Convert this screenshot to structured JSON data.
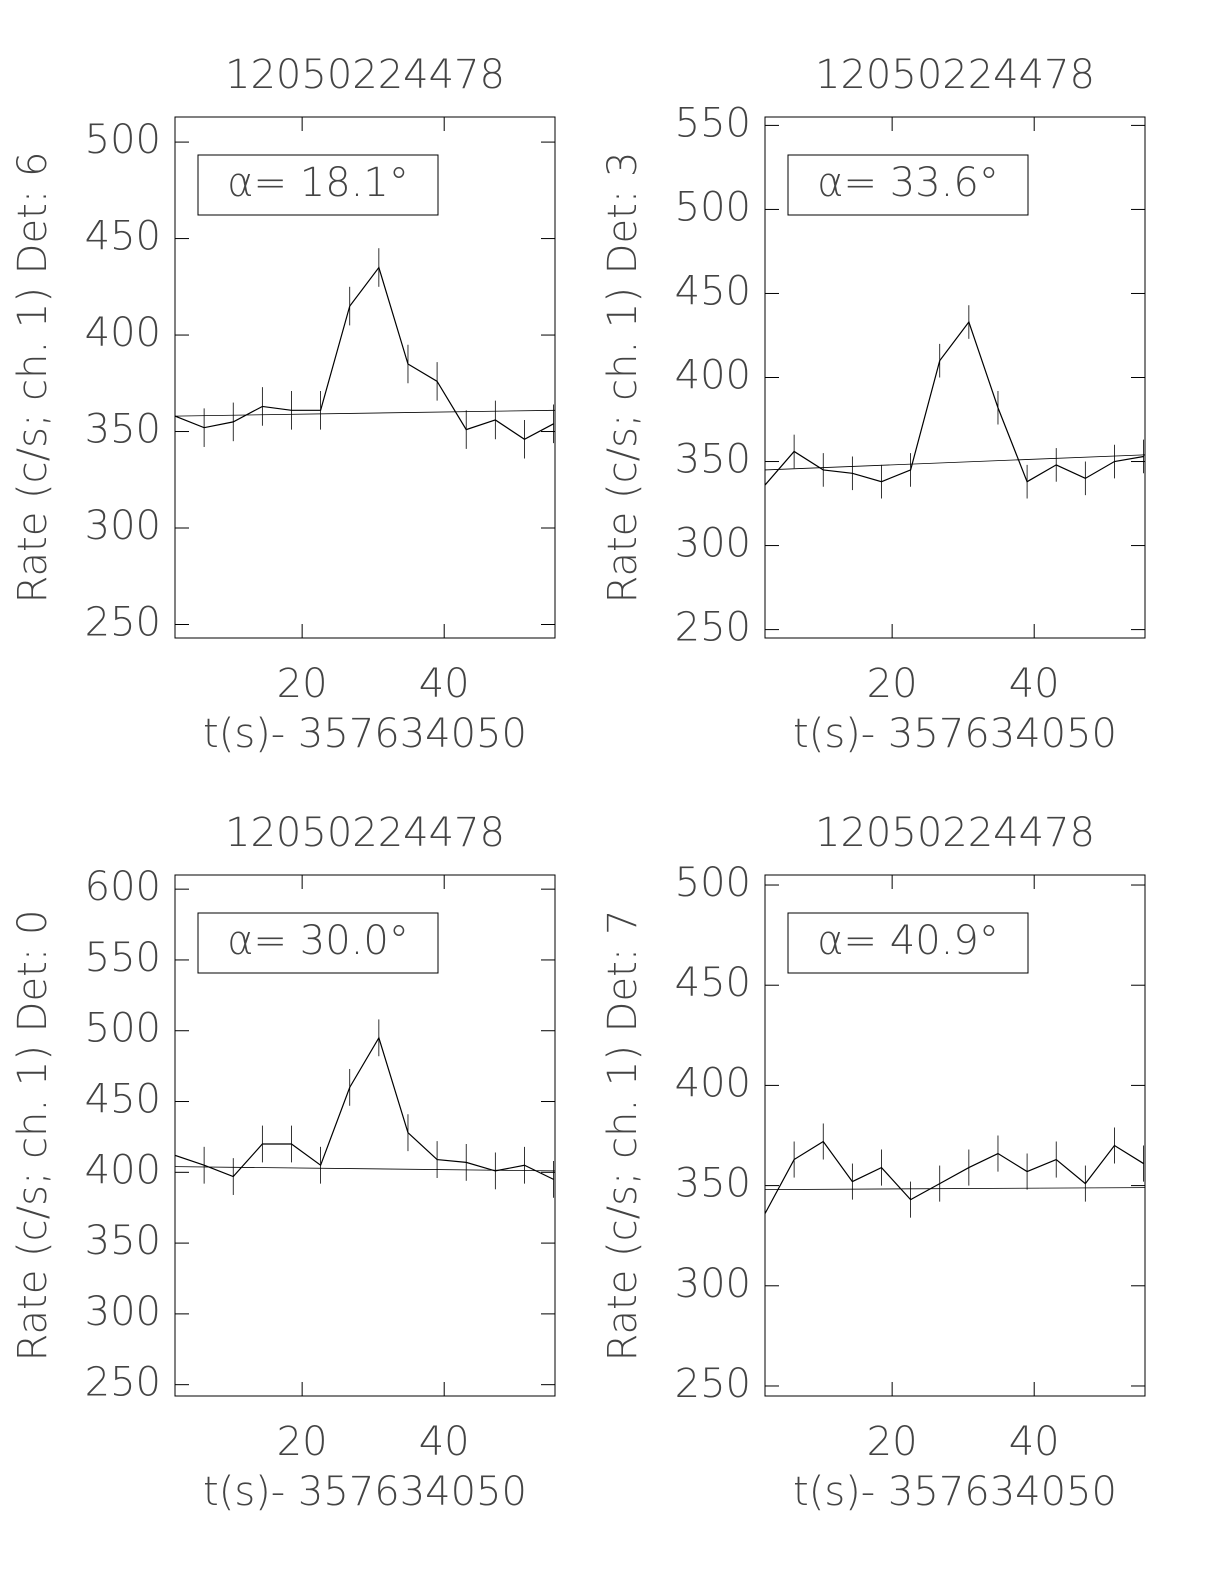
{
  "chart_data": [
    {
      "type": "line",
      "title": "12050224478",
      "y_label": "Rate (c/s; ch. 1) Det: 6",
      "x_label": "t(s)- 357634050",
      "annotation": "α= 18.1°",
      "x": [
        2.1,
        6.2,
        10.3,
        14.4,
        18.5,
        22.6,
        26.7,
        30.8,
        34.9,
        39.0,
        43.1,
        47.2,
        51.3,
        55.4
      ],
      "values": [
        358,
        352,
        355,
        363,
        361,
        361,
        415,
        435,
        385,
        376,
        351,
        356,
        346,
        354
      ],
      "errors": [
        10,
        10,
        10,
        10,
        10,
        10,
        10,
        10,
        10,
        10,
        10,
        10,
        10,
        10
      ],
      "fit_values": [
        358,
        361
      ],
      "color": "#000000",
      "xlim": [
        2.1,
        55.6
      ],
      "xticks": [
        20,
        40
      ],
      "ylim": [
        243,
        513
      ],
      "yticks": [
        250,
        300,
        350,
        400,
        450,
        500
      ]
    },
    {
      "type": "line",
      "title": "12050224478",
      "y_label": "Rate (c/s; ch. 1) Det: 3",
      "x_label": "t(s)- 357634050",
      "annotation": "α= 33.6°",
      "x": [
        2.1,
        6.2,
        10.3,
        14.4,
        18.5,
        22.6,
        26.7,
        30.8,
        34.9,
        39.0,
        43.1,
        47.2,
        51.3,
        55.4
      ],
      "values": [
        336,
        356,
        345,
        343,
        338,
        345,
        410,
        433,
        382,
        338,
        348,
        340,
        350,
        353
      ],
      "errors": [
        10,
        10,
        10,
        10,
        10,
        10,
        10,
        10,
        10,
        10,
        10,
        10,
        10,
        10
      ],
      "fit_values": [
        345,
        354
      ],
      "color": "#000000",
      "xlim": [
        2.1,
        55.6
      ],
      "xticks": [
        20,
        40
      ],
      "ylim": [
        245,
        555
      ],
      "yticks": [
        250,
        300,
        350,
        400,
        450,
        500,
        550
      ]
    },
    {
      "type": "line",
      "title": "12050224478",
      "y_label": "Rate (c/s; ch. 1) Det: 0",
      "x_label": "t(s)- 357634050",
      "annotation": "α= 30.0°",
      "x": [
        2.1,
        6.2,
        10.3,
        14.4,
        18.5,
        22.6,
        26.7,
        30.8,
        34.9,
        39.0,
        43.1,
        47.2,
        51.3,
        55.4
      ],
      "values": [
        412,
        405,
        397,
        420,
        420,
        405,
        460,
        495,
        428,
        409,
        407,
        401,
        405,
        395
      ],
      "errors": [
        13,
        13,
        13,
        13,
        13,
        13,
        13,
        13,
        13,
        13,
        13,
        13,
        13,
        13
      ],
      "fit_values": [
        404,
        401
      ],
      "color": "#000000",
      "xlim": [
        2.1,
        55.6
      ],
      "xticks": [
        20,
        40
      ],
      "ylim": [
        242,
        610
      ],
      "yticks": [
        250,
        300,
        350,
        400,
        450,
        500,
        550,
        600
      ]
    },
    {
      "type": "line",
      "title": "12050224478",
      "y_label": "Rate (c/s; ch. 1) Det: 7",
      "x_label": "t(s)- 357634050",
      "annotation": "α= 40.9°",
      "x": [
        2.1,
        6.2,
        10.3,
        14.4,
        18.5,
        22.6,
        26.7,
        30.8,
        34.9,
        39.0,
        43.1,
        47.2,
        51.3,
        55.4
      ],
      "values": [
        336,
        363,
        372,
        352,
        359,
        343,
        351,
        359,
        366,
        357,
        363,
        351,
        370,
        361
      ],
      "errors": [
        9,
        9,
        9,
        9,
        9,
        9,
        9,
        9,
        9,
        9,
        9,
        9,
        9,
        9
      ],
      "fit_values": [
        348,
        349
      ],
      "color": "#000000",
      "xlim": [
        2.1,
        55.6
      ],
      "xticks": [
        20,
        40
      ],
      "ylim": [
        245,
        505
      ],
      "yticks": [
        250,
        300,
        350,
        400,
        450,
        500
      ]
    }
  ]
}
